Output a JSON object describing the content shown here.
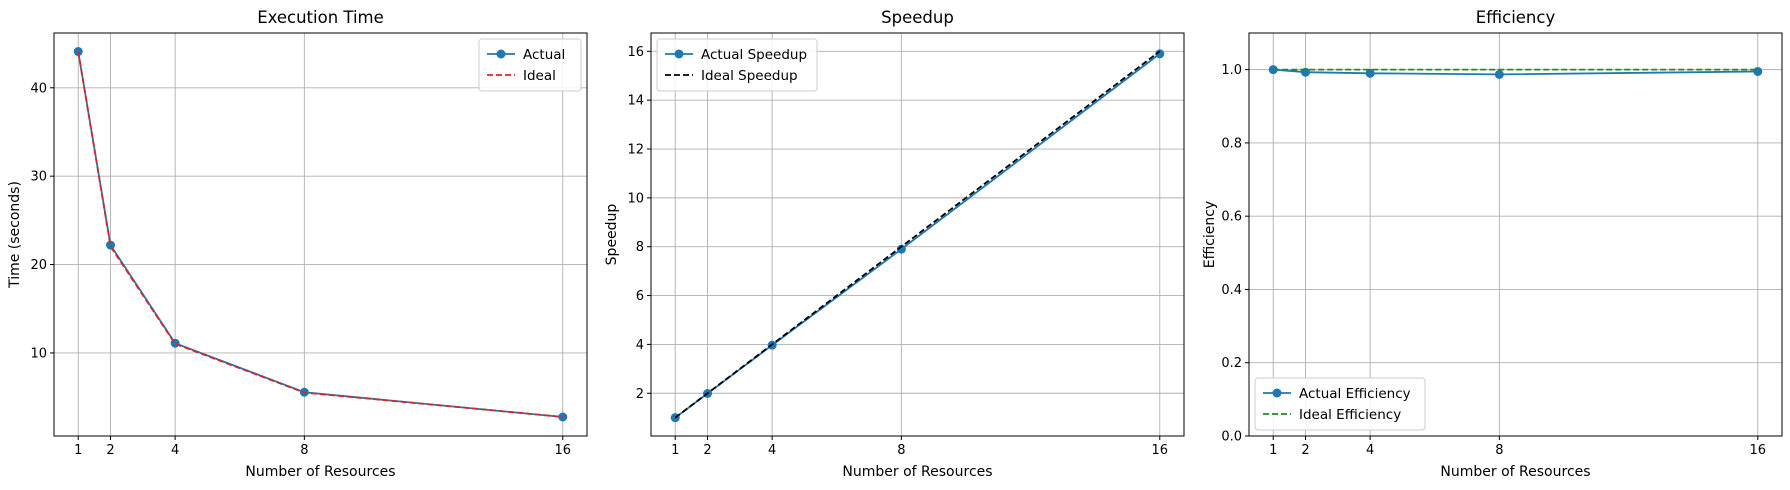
{
  "colors": {
    "actual": "#1f77b4",
    "ideal_time": "#d62728",
    "ideal_speedup": "#000000",
    "ideal_efficiency": "#228b22",
    "grid": "#b0b0b0"
  },
  "chart_data": [
    {
      "type": "line",
      "title": "Execution Time",
      "xlabel": "Number of Resources",
      "ylabel": "Time (seconds)",
      "x": [
        1,
        2,
        4,
        8,
        16
      ],
      "xticks": [
        "1",
        "2",
        "4",
        "8",
        "16"
      ],
      "xlim": [
        0.25,
        16.75
      ],
      "ylim": [
        0.6,
        46.2
      ],
      "yticks": [
        10,
        20,
        30,
        40
      ],
      "ytick_labels": [
        "10",
        "20",
        "30",
        "40"
      ],
      "grid": true,
      "legend_position": "top-right",
      "series": [
        {
          "name": "Actual",
          "style": "solid-marker",
          "values": [
            44.1,
            22.2,
            11.1,
            5.55,
            2.75
          ]
        },
        {
          "name": "Ideal",
          "style": "dashed",
          "values": [
            44.1,
            22.05,
            11.03,
            5.51,
            2.76
          ]
        }
      ]
    },
    {
      "type": "line",
      "title": "Speedup",
      "xlabel": "Number of Resources",
      "ylabel": "Speedup",
      "x": [
        1,
        2,
        4,
        8,
        16
      ],
      "xticks": [
        "1",
        "2",
        "4",
        "8",
        "16"
      ],
      "xlim": [
        0.25,
        16.75
      ],
      "ylim": [
        0.25,
        16.75
      ],
      "yticks": [
        2,
        4,
        6,
        8,
        10,
        12,
        14,
        16
      ],
      "ytick_labels": [
        "2",
        "4",
        "6",
        "8",
        "10",
        "12",
        "14",
        "16"
      ],
      "grid": true,
      "legend_position": "top-left",
      "series": [
        {
          "name": "Actual Speedup",
          "style": "solid-marker",
          "values": [
            1.0,
            1.99,
            3.97,
            7.9,
            15.9
          ]
        },
        {
          "name": "Ideal Speedup",
          "style": "dashed",
          "values": [
            1,
            2,
            4,
            8,
            16
          ]
        }
      ]
    },
    {
      "type": "line",
      "title": "Efficiency",
      "xlabel": "Number of Resources",
      "ylabel": "Efficiency",
      "x": [
        1,
        2,
        4,
        8,
        16
      ],
      "xticks": [
        "1",
        "2",
        "4",
        "8",
        "16"
      ],
      "xlim": [
        0.25,
        16.75
      ],
      "ylim": [
        0.0,
        1.1
      ],
      "yticks": [
        0.0,
        0.2,
        0.4,
        0.6,
        0.8,
        1.0
      ],
      "ytick_labels": [
        "0.0",
        "0.2",
        "0.4",
        "0.6",
        "0.8",
        "1.0"
      ],
      "grid": true,
      "legend_position": "bottom-left",
      "series": [
        {
          "name": "Actual Efficiency",
          "style": "solid-marker",
          "values": [
            1.0,
            0.993,
            0.99,
            0.987,
            0.995
          ]
        },
        {
          "name": "Ideal Efficiency",
          "style": "dashed",
          "values": [
            1,
            1,
            1,
            1,
            1
          ]
        }
      ]
    }
  ]
}
